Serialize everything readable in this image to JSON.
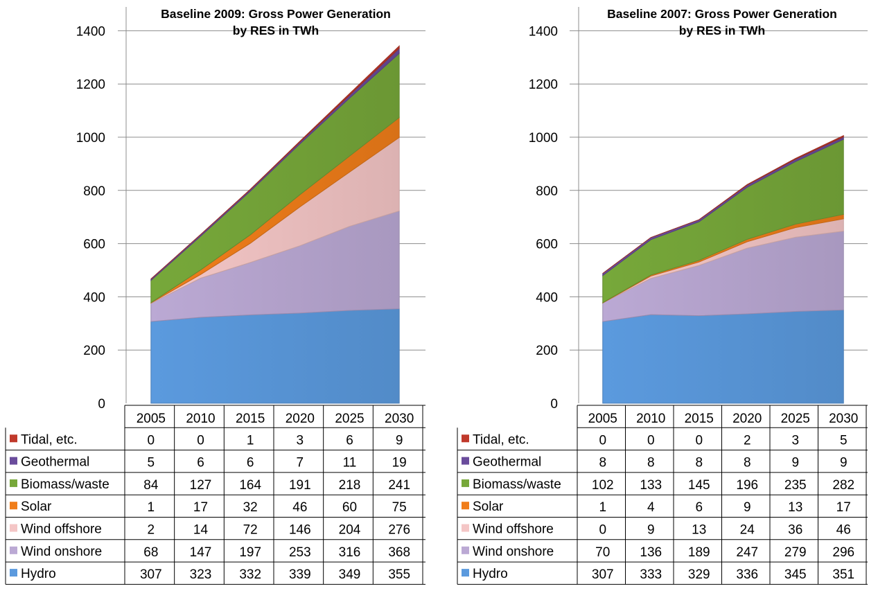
{
  "chart_data": [
    {
      "type": "area",
      "stacked": true,
      "title": "Baseline 2009: Gross Power Generation by RES in TWh",
      "title_lines": [
        "Baseline 2009: Gross Power Generation",
        "by RES in TWh"
      ],
      "categories": [
        "2005",
        "2010",
        "2015",
        "2020",
        "2025",
        "2030"
      ],
      "yticks": [
        "0",
        "200",
        "400",
        "600",
        "800",
        "1000",
        "1200",
        "1400"
      ],
      "ylim": [
        0,
        1500
      ],
      "grid": true,
      "legend": "data-table",
      "series": [
        {
          "name": "Hydro",
          "color": "#5b9ade",
          "values": [
            307,
            323,
            332,
            339,
            349,
            355
          ]
        },
        {
          "name": "Wind onshore",
          "color": "#bba9d4",
          "values": [
            68,
            147,
            197,
            253,
            316,
            368
          ]
        },
        {
          "name": "Wind offshore",
          "color": "#f4c6c6",
          "values": [
            2,
            14,
            72,
            146,
            204,
            276
          ]
        },
        {
          "name": "Solar",
          "color": "#f07d1a",
          "values": [
            1,
            17,
            32,
            46,
            60,
            75
          ]
        },
        {
          "name": "Biomass/waste",
          "color": "#77a83a",
          "values": [
            84,
            127,
            164,
            191,
            218,
            241
          ]
        },
        {
          "name": "Geothermal",
          "color": "#6a4c9c",
          "values": [
            5,
            6,
            6,
            7,
            11,
            19
          ]
        },
        {
          "name": "Tidal, etc.",
          "color": "#c0392b",
          "values": [
            0,
            0,
            1,
            3,
            6,
            9
          ]
        }
      ]
    },
    {
      "type": "area",
      "stacked": true,
      "title": "Baseline 2007: Gross Power Generation by RES in TWh",
      "title_lines": [
        "Baseline 2007: Gross Power Generation",
        "by RES in TWh"
      ],
      "categories": [
        "2005",
        "2010",
        "2015",
        "2020",
        "2025",
        "2030"
      ],
      "yticks": [
        "0",
        "200",
        "400",
        "600",
        "800",
        "1000",
        "1200",
        "1400"
      ],
      "ylim": [
        0,
        1500
      ],
      "grid": true,
      "legend": "data-table",
      "series": [
        {
          "name": "Hydro",
          "color": "#5b9ade",
          "values": [
            307,
            333,
            329,
            336,
            345,
            351
          ]
        },
        {
          "name": "Wind onshore",
          "color": "#bba9d4",
          "values": [
            70,
            136,
            189,
            247,
            279,
            296
          ]
        },
        {
          "name": "Wind offshore",
          "color": "#f4c6c6",
          "values": [
            0,
            9,
            13,
            24,
            36,
            46
          ]
        },
        {
          "name": "Solar",
          "color": "#f07d1a",
          "values": [
            1,
            4,
            6,
            9,
            13,
            17
          ]
        },
        {
          "name": "Biomass/waste",
          "color": "#77a83a",
          "values": [
            102,
            133,
            145,
            196,
            235,
            282
          ]
        },
        {
          "name": "Geothermal",
          "color": "#6a4c9c",
          "values": [
            8,
            8,
            8,
            8,
            9,
            9
          ]
        },
        {
          "name": "Tidal, etc.",
          "color": "#c0392b",
          "values": [
            0,
            0,
            0,
            2,
            3,
            5
          ]
        }
      ]
    }
  ]
}
